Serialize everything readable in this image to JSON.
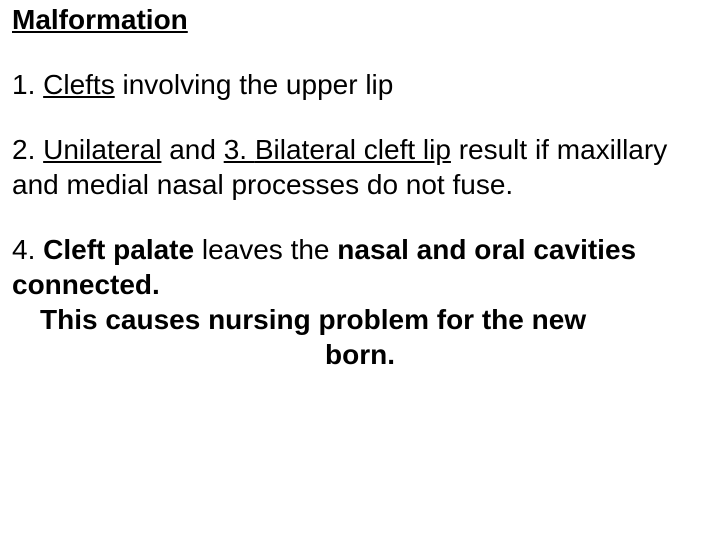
{
  "colors": {
    "text": "#000000",
    "background": "#ffffff"
  },
  "typography": {
    "font_family": "Arial, Helvetica, sans-serif",
    "base_fontsize_pt": 21,
    "title_fontsize_pt": 23,
    "line_height": 1.25,
    "bold_weight": 700
  },
  "title": "Malformation",
  "item1": {
    "prefix": "1. ",
    "term": "Clefts",
    "rest": " involving the upper lip"
  },
  "item2": {
    "prefix": "2. ",
    "term_a": "Unilateral",
    "mid": " and ",
    "num_b": "3. ",
    "term_b": "Bilateral cleft lip",
    "rest": " result if maxillary and medial nasal processes do not fuse."
  },
  "item4": {
    "line1_prefix": "4. ",
    "line1_term": "Cleft palate",
    "line1_mid": " leaves the ",
    "line1_bold_tail": "nasal and oral cavities connected.",
    "line2": "This causes nursing problem for the new",
    "line3": "born."
  }
}
